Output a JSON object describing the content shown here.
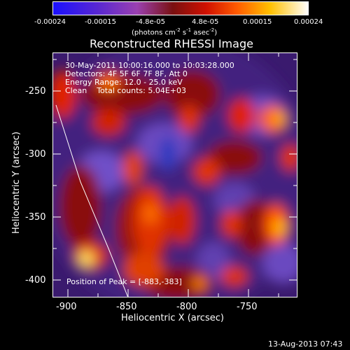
{
  "colorbar": {
    "ticks": [
      "-0.00024",
      "-0.00015",
      "-4.8e-05",
      "4.8e-05",
      "0.00015",
      "0.00024"
    ],
    "units_prefix": "(photons cm",
    "units_exp1": "-2",
    "units_mid": " s",
    "units_exp2": "-1",
    "units_mid2": " asec",
    "units_exp3": "-2",
    "units_suffix": ")"
  },
  "plot": {
    "title": "Reconstructed RHESSI Image",
    "info_lines": [
      "30-May-2011 10:00:16.000 to 10:03:28.000",
      "Detectors: 4F 5F 6F 7F 8F, Att 0",
      "Energy Range: 12.0 - 25.0 keV",
      "Clean    Total counts: 5.04E+03"
    ],
    "peak_label": "Position of Peak = [-883,-383]",
    "xlabel": "Heliocentric X (arcsec)",
    "ylabel": "Heliocentric Y (arcsec)",
    "xticks": [
      "-900",
      "-850",
      "-800",
      "-750"
    ],
    "yticks": [
      "-250",
      "-300",
      "-350",
      "-400"
    ]
  },
  "footer": {
    "date": "13-Aug-2013 07:43"
  }
}
